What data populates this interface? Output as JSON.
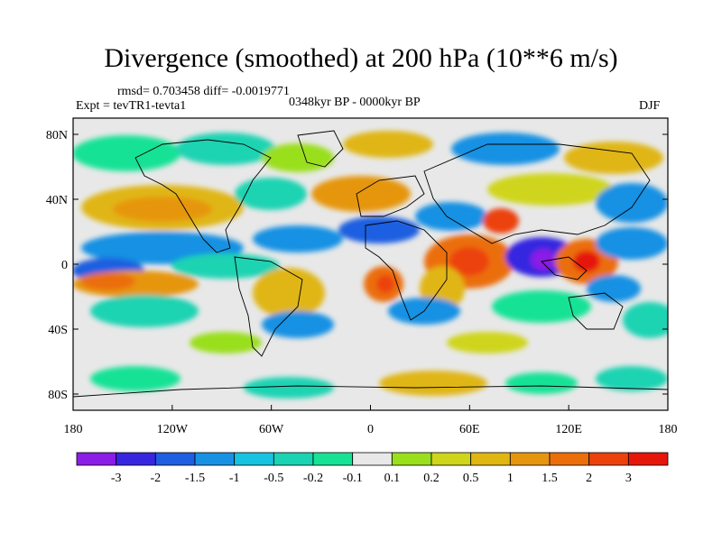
{
  "title": "Divergence (smoothed) at 200 hPa (10**6 m/s)",
  "stats": "rmsd= 0.703458 diff= -0.0019771",
  "experiment": "Expt = tevTR1-tevta1",
  "period": "0348kyr BP - 0000kyr BP",
  "season": "DJF",
  "axes": {
    "lat_ticks": [
      "80N",
      "40N",
      "0",
      "40S",
      "80S"
    ],
    "lon_ticks": [
      "180",
      "120W",
      "60W",
      "0",
      "60E",
      "120E",
      "180"
    ]
  },
  "colorbar": {
    "colors": [
      "#8a1de6",
      "#3626e0",
      "#1e5ee0",
      "#1891e3",
      "#18c3e0",
      "#1ad3b2",
      "#16e296",
      "#e8e8e8",
      "#9adf1c",
      "#cfd51a",
      "#e0b613",
      "#e6960e",
      "#eb6e0b",
      "#ec420a",
      "#e6160b"
    ],
    "labels": [
      "-3",
      "-2",
      "-1.5",
      "-1",
      "-0.5",
      "-0.2",
      "-0.1",
      "0.1",
      "0.2",
      "0.5",
      "1",
      "1.5",
      "2",
      "3"
    ]
  }
}
